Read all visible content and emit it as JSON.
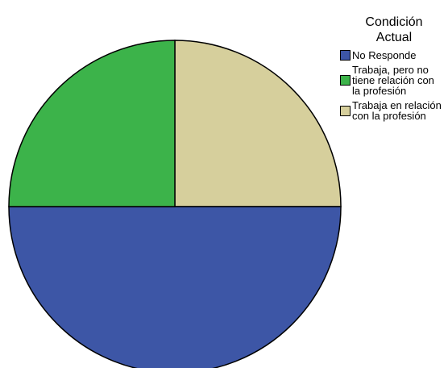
{
  "chart_data": {
    "type": "pie",
    "title": "",
    "legend_title": [
      "Condición",
      "Actual"
    ],
    "legend_position": "right",
    "start_angle_deg": 0,
    "direction": "clockwise",
    "slices": [
      {
        "label": "Trabaja en relación con la profesión",
        "value": 25,
        "color": "#D6CF9C"
      },
      {
        "label": "No Responde",
        "value": 50,
        "color": "#3D56A6"
      },
      {
        "label": "Trabaja, pero no tiene relación con la profesión",
        "value": 25,
        "color": "#3CB34A"
      }
    ],
    "legend_entries": [
      {
        "label": "No Responde",
        "color": "#3D56A6"
      },
      {
        "label": "Trabaja, pero no tiene relación con la profesión",
        "color": "#3CB34A"
      },
      {
        "label": "Trabaja en relación con la profesión",
        "color": "#D6CF9C"
      }
    ]
  }
}
